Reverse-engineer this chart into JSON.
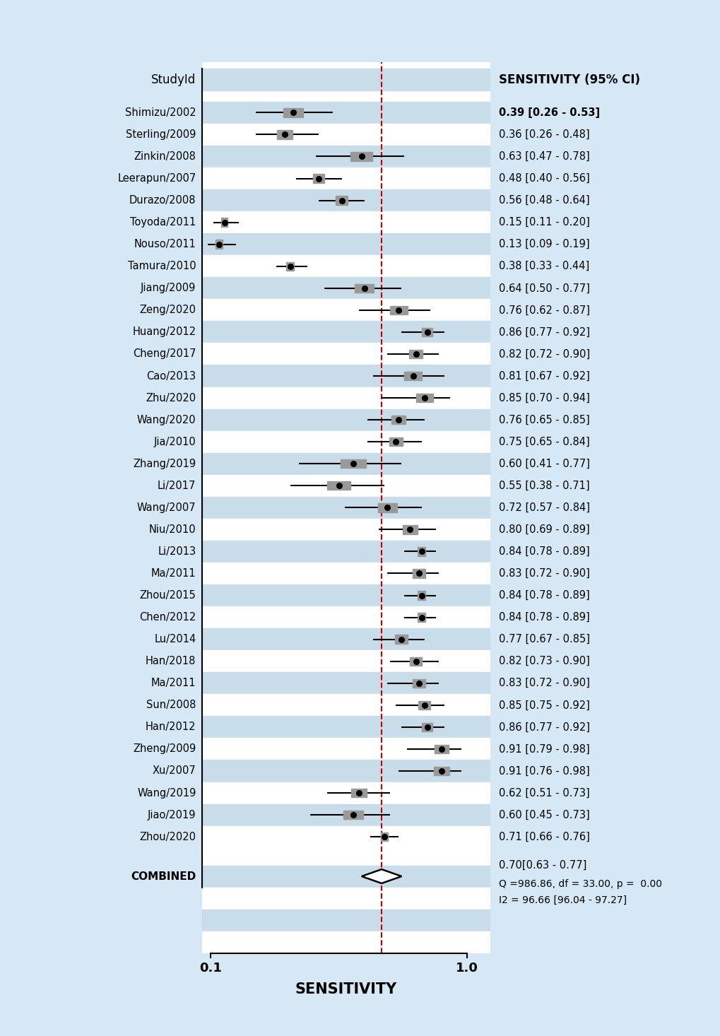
{
  "studies": [
    {
      "name": "Shimizu/2002",
      "sens": 0.39,
      "lo": 0.26,
      "hi": 0.53,
      "label": "0.39 [0.26 - 0.53]",
      "bold": true
    },
    {
      "name": "Sterling/2009",
      "sens": 0.36,
      "lo": 0.26,
      "hi": 0.48,
      "label": "0.36 [0.26 - 0.48]",
      "bold": false
    },
    {
      "name": "Zinkin/2008",
      "sens": 0.63,
      "lo": 0.47,
      "hi": 0.78,
      "label": "0.63 [0.47 - 0.78]",
      "bold": false
    },
    {
      "name": "Leerapun/2007",
      "sens": 0.48,
      "lo": 0.4,
      "hi": 0.56,
      "label": "0.48 [0.40 - 0.56]",
      "bold": false
    },
    {
      "name": "Durazo/2008",
      "sens": 0.56,
      "lo": 0.48,
      "hi": 0.64,
      "label": "0.56 [0.48 - 0.64]",
      "bold": false
    },
    {
      "name": "Toyoda/2011",
      "sens": 0.15,
      "lo": 0.11,
      "hi": 0.2,
      "label": "0.15 [0.11 - 0.20]",
      "bold": false
    },
    {
      "name": "Nouso/2011",
      "sens": 0.13,
      "lo": 0.09,
      "hi": 0.19,
      "label": "0.13 [0.09 - 0.19]",
      "bold": false
    },
    {
      "name": "Tamura/2010",
      "sens": 0.38,
      "lo": 0.33,
      "hi": 0.44,
      "label": "0.38 [0.33 - 0.44]",
      "bold": false
    },
    {
      "name": "Jiang/2009",
      "sens": 0.64,
      "lo": 0.5,
      "hi": 0.77,
      "label": "0.64 [0.50 - 0.77]",
      "bold": false
    },
    {
      "name": "Zeng/2020",
      "sens": 0.76,
      "lo": 0.62,
      "hi": 0.87,
      "label": "0.76 [0.62 - 0.87]",
      "bold": false
    },
    {
      "name": "Huang/2012",
      "sens": 0.86,
      "lo": 0.77,
      "hi": 0.92,
      "label": "0.86 [0.77 - 0.92]",
      "bold": false
    },
    {
      "name": "Cheng/2017",
      "sens": 0.82,
      "lo": 0.72,
      "hi": 0.9,
      "label": "0.82 [0.72 - 0.90]",
      "bold": false
    },
    {
      "name": "Cao/2013",
      "sens": 0.81,
      "lo": 0.67,
      "hi": 0.92,
      "label": "0.81 [0.67 - 0.92]",
      "bold": false
    },
    {
      "name": "Zhu/2020",
      "sens": 0.85,
      "lo": 0.7,
      "hi": 0.94,
      "label": "0.85 [0.70 - 0.94]",
      "bold": false
    },
    {
      "name": "Wang/2020",
      "sens": 0.76,
      "lo": 0.65,
      "hi": 0.85,
      "label": "0.76 [0.65 - 0.85]",
      "bold": false
    },
    {
      "name": "Jia/2010",
      "sens": 0.75,
      "lo": 0.65,
      "hi": 0.84,
      "label": "0.75 [0.65 - 0.84]",
      "bold": false
    },
    {
      "name": "Zhang/2019",
      "sens": 0.6,
      "lo": 0.41,
      "hi": 0.77,
      "label": "0.60 [0.41 - 0.77]",
      "bold": false
    },
    {
      "name": "Li/2017",
      "sens": 0.55,
      "lo": 0.38,
      "hi": 0.71,
      "label": "0.55 [0.38 - 0.71]",
      "bold": false
    },
    {
      "name": "Wang/2007",
      "sens": 0.72,
      "lo": 0.57,
      "hi": 0.84,
      "label": "0.72 [0.57 - 0.84]",
      "bold": false
    },
    {
      "name": "Niu/2010",
      "sens": 0.8,
      "lo": 0.69,
      "hi": 0.89,
      "label": "0.80 [0.69 - 0.89]",
      "bold": false
    },
    {
      "name": "Li/2013",
      "sens": 0.84,
      "lo": 0.78,
      "hi": 0.89,
      "label": "0.84 [0.78 - 0.89]",
      "bold": false
    },
    {
      "name": "Ma/2011",
      "sens": 0.83,
      "lo": 0.72,
      "hi": 0.9,
      "label": "0.83 [0.72 - 0.90]",
      "bold": false
    },
    {
      "name": "Zhou/2015",
      "sens": 0.84,
      "lo": 0.78,
      "hi": 0.89,
      "label": "0.84 [0.78 - 0.89]",
      "bold": false
    },
    {
      "name": "Chen/2012",
      "sens": 0.84,
      "lo": 0.78,
      "hi": 0.89,
      "label": "0.84 [0.78 - 0.89]",
      "bold": false
    },
    {
      "name": "Lu/2014",
      "sens": 0.77,
      "lo": 0.67,
      "hi": 0.85,
      "label": "0.77 [0.67 - 0.85]",
      "bold": false
    },
    {
      "name": "Han/2018",
      "sens": 0.82,
      "lo": 0.73,
      "hi": 0.9,
      "label": "0.82 [0.73 - 0.90]",
      "bold": false
    },
    {
      "name": "Ma/2011_2",
      "sens": 0.83,
      "lo": 0.72,
      "hi": 0.9,
      "label": "0.83 [0.72 - 0.90]",
      "bold": false
    },
    {
      "name": "Sun/2008",
      "sens": 0.85,
      "lo": 0.75,
      "hi": 0.92,
      "label": "0.85 [0.75 - 0.92]",
      "bold": false
    },
    {
      "name": "Han/2012",
      "sens": 0.86,
      "lo": 0.77,
      "hi": 0.92,
      "label": "0.86 [0.77 - 0.92]",
      "bold": false
    },
    {
      "name": "Zheng/2009",
      "sens": 0.91,
      "lo": 0.79,
      "hi": 0.98,
      "label": "0.91 [0.79 - 0.98]",
      "bold": false
    },
    {
      "name": "Xu/2007",
      "sens": 0.91,
      "lo": 0.76,
      "hi": 0.98,
      "label": "0.91 [0.76 - 0.98]",
      "bold": false
    },
    {
      "name": "Wang/2019",
      "sens": 0.62,
      "lo": 0.51,
      "hi": 0.73,
      "label": "0.62 [0.51 - 0.73]",
      "bold": false
    },
    {
      "name": "Jiao/2019",
      "sens": 0.6,
      "lo": 0.45,
      "hi": 0.73,
      "label": "0.60 [0.45 - 0.73]",
      "bold": false
    },
    {
      "name": "Zhou/2020",
      "sens": 0.71,
      "lo": 0.66,
      "hi": 0.76,
      "label": "0.71 [0.66 - 0.76]",
      "bold": false
    }
  ],
  "display_names": [
    "Shimizu/2002",
    "Sterling/2009",
    "Zinkin/2008",
    "Leerapun/2007",
    "Durazo/2008",
    "Toyoda/2011",
    "Nouso/2011",
    "Tamura/2010",
    "Jiang/2009",
    "Zeng/2020",
    "Huang/2012",
    "Cheng/2017",
    "Cao/2013",
    "Zhu/2020",
    "Wang/2020",
    "Jia/2010",
    "Zhang/2019",
    "Li/2017",
    "Wang/2007",
    "Niu/2010",
    "Li/2013",
    "Ma/2011",
    "Zhou/2015",
    "Chen/2012",
    "Lu/2014",
    "Han/2018",
    "Ma/2011",
    "Sun/2008",
    "Han/2012",
    "Zheng/2009",
    "Xu/2007",
    "Wang/2019",
    "Jiao/2019",
    "Zhou/2020"
  ],
  "combined": {
    "sens": 0.7,
    "lo": 0.63,
    "hi": 0.77,
    "label": "0.70[0.63 - 0.77]",
    "q_label": "Q =986.86, df = 33.00, p =  0.00",
    "i2_label": "I2 = 96.66 [96.04 - 97.27]"
  },
  "dashed_line_x": 0.7,
  "xlim_lo": 0.07,
  "xlim_hi": 1.08,
  "xticks": [
    0.1,
    1.0
  ],
  "xticklabels": [
    "0.1",
    "1.0"
  ],
  "xlabel": "SENSITIVITY",
  "header_left": "StudyId",
  "header_right": "SENSITIVITY (95% CI)",
  "background_color": "#d6e8f5",
  "plot_bg_color": "#ffffff",
  "stripe_color": "#c8dcea",
  "dashed_color": "#cc0000",
  "marker_color": "#000000",
  "marker_box_color": "#999999",
  "ci_line_color": "#000000",
  "diamond_edge_color": "#000000",
  "diamond_face_color": "#ffffff"
}
